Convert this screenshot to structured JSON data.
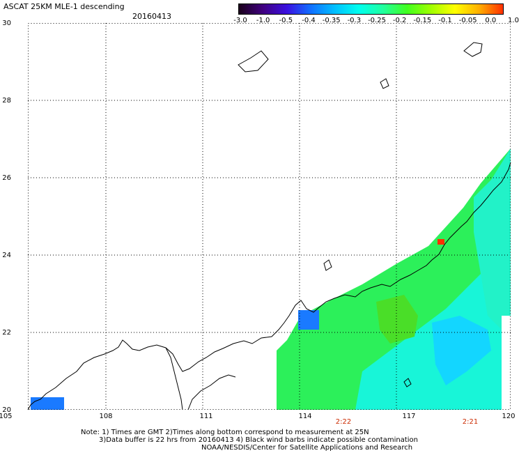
{
  "header": {
    "title": "ASCAT 25KM MLE-1 descending",
    "date": "20160413"
  },
  "colorbar": {
    "labels": [
      "-3.0",
      "-1.0",
      "-0.5",
      "-0.4",
      "-0.35",
      "-0.3",
      "-0.25",
      "-0.2",
      "-0.15",
      "-0.1",
      "-0.05",
      "0.0",
      "1.0"
    ],
    "colors": [
      "#1a001a",
      "#400080",
      "#3a10e0",
      "#1070ff",
      "#00c0ff",
      "#00ffee",
      "#20ffa0",
      "#40ff20",
      "#a0ff00",
      "#ffff00",
      "#ffb000",
      "#ff3000"
    ]
  },
  "map": {
    "lat_labels": [
      "30",
      "28",
      "26",
      "24",
      "22",
      "20"
    ],
    "lon_labels": [
      "105",
      "108",
      "111",
      "114",
      "117",
      "120"
    ],
    "time_labels": [
      "2:22",
      "2:21"
    ],
    "gridline_style": "dotted",
    "colors": {
      "coastline": "#000000",
      "low": "#1a7aff",
      "mid": "#00ffcc",
      "high": "#30ff30",
      "alert": "#ff3000"
    }
  },
  "notes": {
    "line1": "Note: 1) Times are GMT 2)Times along bottom correspond to measurement at 25N",
    "line2": "3)Data buffer is 22 hrs from 20160413 4) Black wind barbs indicate possible contamination",
    "line3": "NOAA/NESDIS/Center for Satellite Applications and Research"
  }
}
